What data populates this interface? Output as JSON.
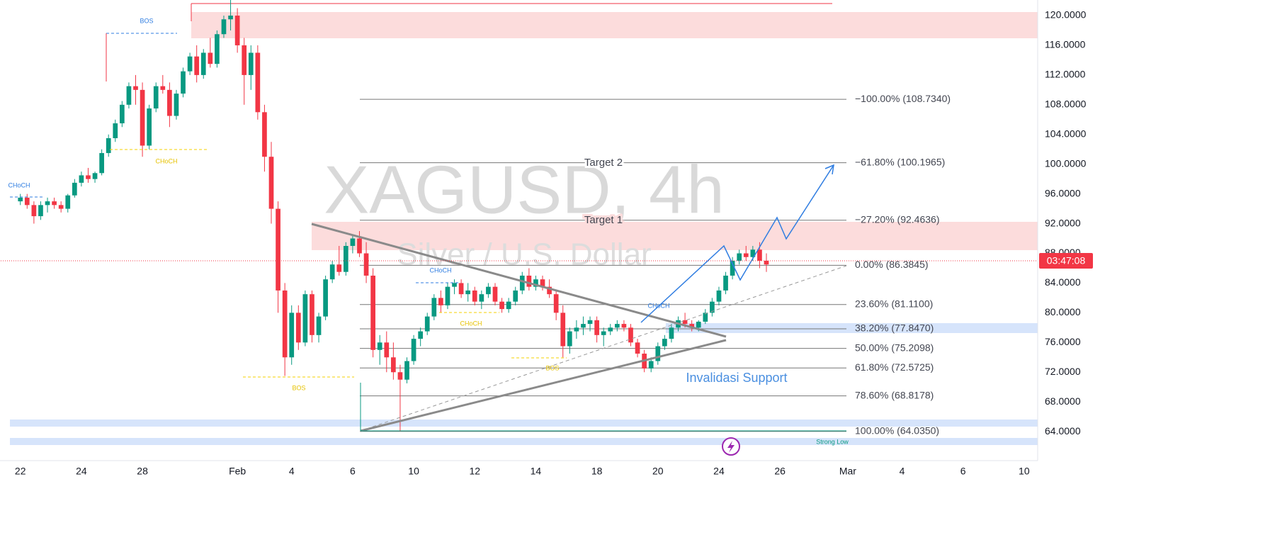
{
  "chart_data": {
    "type": "candlestick",
    "title": "XAGUSD, 4h",
    "subtitle": "Silver / U.S. Dollar",
    "up_color": "#089981",
    "down_color": "#f23645",
    "xlim": [
      -3,
      150
    ],
    "ylim": [
      60.1,
      122.1
    ],
    "xticks": [
      {
        "value": 0,
        "label": "22"
      },
      {
        "value": 9,
        "label": "24"
      },
      {
        "value": 18,
        "label": "28"
      },
      {
        "value": 32,
        "label": "Feb"
      },
      {
        "value": 40,
        "label": "4"
      },
      {
        "value": 49,
        "label": "6"
      },
      {
        "value": 58,
        "label": "10"
      },
      {
        "value": 67,
        "label": "12"
      },
      {
        "value": 76,
        "label": "14"
      },
      {
        "value": 85,
        "label": "18"
      },
      {
        "value": 94,
        "label": "20"
      },
      {
        "value": 103,
        "label": "24"
      },
      {
        "value": 112,
        "label": "26"
      },
      {
        "value": 122,
        "label": "Mar"
      },
      {
        "value": 130,
        "label": "4"
      },
      {
        "value": 139,
        "label": "6"
      },
      {
        "value": 148,
        "label": "10"
      }
    ],
    "yticks": [
      {
        "value": 120,
        "label": "120.0000"
      },
      {
        "value": 116,
        "label": "116.0000"
      },
      {
        "value": 112,
        "label": "112.0000"
      },
      {
        "value": 108,
        "label": "108.0000"
      },
      {
        "value": 104,
        "label": "104.0000"
      },
      {
        "value": 100,
        "label": "100.0000"
      },
      {
        "value": 96,
        "label": "96.0000"
      },
      {
        "value": 92,
        "label": "92.0000"
      },
      {
        "value": 88,
        "label": "88.0000"
      },
      {
        "value": 84,
        "label": "84.0000"
      },
      {
        "value": 80,
        "label": "80.0000"
      },
      {
        "value": 76,
        "label": "76.0000"
      },
      {
        "value": 72,
        "label": "72.0000"
      },
      {
        "value": 68,
        "label": "68.0000"
      },
      {
        "value": 64,
        "label": "64.0000"
      }
    ],
    "countdown": "03:47:08",
    "fib_levels": [
      {
        "value": 108.734,
        "label": "−100.00% (108.7340)"
      },
      {
        "value": 100.1965,
        "label": "−61.80% (100.1965)"
      },
      {
        "value": 92.4636,
        "label": "−27.20% (92.4636)"
      },
      {
        "value": 86.3845,
        "label": "0.00% (86.3845)"
      },
      {
        "value": 81.11,
        "label": "23.60% (81.1100)"
      },
      {
        "value": 77.847,
        "label": "38.20% (77.8470)"
      },
      {
        "value": 75.2098,
        "label": "50.00% (75.2098)"
      },
      {
        "value": 72.5725,
        "label": "61.80% (72.5725)"
      },
      {
        "value": 68.8178,
        "label": "78.60% (68.8178)"
      },
      {
        "value": 64.035,
        "label": "100.00% (64.0350)"
      }
    ],
    "annotations": [
      "BOS",
      "CHoCH",
      "CHoCH",
      "BOS",
      "CHoCH",
      "CHoCH",
      "BOS",
      "CHoCH",
      "Target 2",
      "Target 1",
      "Invalidasi Support",
      "Strong Low"
    ],
    "ohlc": [
      [
        95,
        96,
        94.5,
        95.5
      ],
      [
        95.5,
        96,
        94,
        94.5
      ],
      [
        94.5,
        95,
        92,
        93
      ],
      [
        93,
        95,
        92.5,
        94.5
      ],
      [
        94.5,
        95.5,
        93.5,
        95
      ],
      [
        95,
        95.5,
        94,
        94.5
      ],
      [
        94.5,
        95,
        93.5,
        94
      ],
      [
        94,
        96,
        93.5,
        95.8
      ],
      [
        95.8,
        98,
        95.5,
        97.5
      ],
      [
        97.5,
        99,
        97,
        98.5
      ],
      [
        98.5,
        99.5,
        97.5,
        98
      ],
      [
        98,
        99,
        97.5,
        98.8
      ],
      [
        98.8,
        102,
        98.5,
        101.5
      ],
      [
        101.5,
        104,
        101,
        103.5
      ],
      [
        103.5,
        106,
        103,
        105.5
      ],
      [
        105.5,
        108.5,
        105,
        108
      ],
      [
        108,
        111,
        107.5,
        110.5
      ],
      [
        110.5,
        112,
        108,
        110
      ],
      [
        110,
        111,
        101,
        102.5
      ],
      [
        102.5,
        108,
        102,
        107.5
      ],
      [
        107.5,
        111,
        107,
        110.5
      ],
      [
        110.5,
        112,
        109.5,
        110
      ],
      [
        110,
        111,
        105,
        106.5
      ],
      [
        106.5,
        110,
        106,
        109.5
      ],
      [
        109.5,
        113,
        109,
        112.5
      ],
      [
        112.5,
        115,
        112,
        114.5
      ],
      [
        114.5,
        116,
        111,
        112
      ],
      [
        112,
        115.5,
        111.5,
        115
      ],
      [
        115,
        117,
        113,
        113.5
      ],
      [
        113.5,
        118,
        113,
        117.5
      ],
      [
        117.5,
        120,
        117,
        119.5
      ],
      [
        119.5,
        122.1,
        118,
        120
      ],
      [
        120,
        121,
        115,
        116
      ],
      [
        116,
        117,
        108,
        112
      ],
      [
        112,
        116,
        110,
        115
      ],
      [
        115,
        116,
        106,
        107
      ],
      [
        107,
        108,
        99,
        101
      ],
      [
        101,
        103,
        92,
        94
      ],
      [
        94,
        95,
        80,
        83
      ],
      [
        83,
        84,
        71.5,
        74
      ],
      [
        74,
        81,
        73,
        80
      ],
      [
        80,
        81,
        75,
        76
      ],
      [
        76,
        83,
        75.5,
        82.5
      ],
      [
        82.5,
        83,
        76,
        77
      ],
      [
        77,
        80,
        76,
        79.5
      ],
      [
        79.5,
        85,
        79,
        84.5
      ],
      [
        84.5,
        87,
        84,
        86.5
      ],
      [
        86.5,
        89,
        85,
        85.5
      ],
      [
        85.5,
        89.5,
        85,
        89
      ],
      [
        89,
        90.5,
        88,
        90
      ],
      [
        90,
        91,
        87.5,
        88
      ],
      [
        88,
        89.5,
        84,
        85
      ],
      [
        85,
        86,
        74,
        75
      ],
      [
        75,
        77,
        73,
        76
      ],
      [
        76,
        77.5,
        72,
        74
      ],
      [
        74,
        76,
        71,
        72
      ],
      [
        72,
        73,
        64.035,
        71
      ],
      [
        71,
        74,
        70.5,
        73.5
      ],
      [
        73.5,
        77,
        73,
        76.5
      ],
      [
        76.5,
        78,
        75.5,
        77.5
      ],
      [
        77.5,
        80,
        77,
        79.5
      ],
      [
        79.5,
        82.5,
        79,
        82
      ],
      [
        82,
        83,
        80,
        81
      ],
      [
        81,
        84,
        80.5,
        83.5
      ],
      [
        83.5,
        84.5,
        82.5,
        84
      ],
      [
        84,
        84.5,
        82,
        82.5
      ],
      [
        82.5,
        84,
        81.5,
        83
      ],
      [
        83,
        83.5,
        81,
        81.5
      ],
      [
        81.5,
        83,
        80.5,
        82.5
      ],
      [
        82.5,
        84,
        82,
        83.5
      ],
      [
        83.5,
        84,
        81,
        81.5
      ],
      [
        81.5,
        82,
        80,
        80.5
      ],
      [
        80.5,
        82,
        80,
        81.5
      ],
      [
        81.5,
        83.5,
        81,
        83
      ],
      [
        83,
        85.5,
        82.5,
        85
      ],
      [
        85,
        86,
        83,
        83.5
      ],
      [
        83.5,
        85,
        83,
        84.5
      ],
      [
        84.5,
        85,
        83,
        83.5
      ],
      [
        83.5,
        84.5,
        82,
        82.5
      ],
      [
        82.5,
        83,
        79,
        80
      ],
      [
        80,
        81,
        74,
        75.5
      ],
      [
        75.5,
        78,
        74.5,
        77.5
      ],
      [
        77.5,
        79,
        76.5,
        78
      ],
      [
        78,
        79.5,
        77,
        78.5
      ],
      [
        78.5,
        79.5,
        77.5,
        79
      ],
      [
        79,
        79.5,
        76,
        77
      ],
      [
        77,
        78,
        75.5,
        77.5
      ],
      [
        77.5,
        78.5,
        77,
        78
      ],
      [
        78,
        79,
        77.5,
        78.5
      ],
      [
        78.5,
        79,
        77.5,
        78
      ],
      [
        78,
        78.5,
        75.5,
        76
      ],
      [
        76,
        76.5,
        74,
        74.5
      ],
      [
        74.5,
        75,
        72,
        72.5
      ],
      [
        72.5,
        74,
        72,
        73.5
      ],
      [
        73.5,
        76,
        73,
        75.5
      ],
      [
        75.5,
        77,
        75,
        76.5
      ],
      [
        76.5,
        78.5,
        76,
        78
      ],
      [
        78,
        79.5,
        77.5,
        79
      ],
      [
        79,
        80,
        78,
        78.5
      ],
      [
        78.5,
        79,
        77.5,
        78
      ],
      [
        78,
        79,
        77.5,
        78.8
      ],
      [
        78.8,
        80.5,
        78.5,
        80
      ],
      [
        80,
        82,
        79.5,
        81.5
      ],
      [
        81.5,
        83.5,
        81,
        83
      ],
      [
        83,
        85.5,
        82.5,
        85
      ],
      [
        85,
        87.5,
        84.5,
        87
      ],
      [
        87,
        88.5,
        86.5,
        88
      ],
      [
        88,
        89,
        87,
        87.5
      ],
      [
        87.5,
        89,
        87,
        88.5
      ],
      [
        88.5,
        89.5,
        86,
        87
      ],
      [
        87,
        88,
        85.5,
        86.5
      ]
    ]
  }
}
